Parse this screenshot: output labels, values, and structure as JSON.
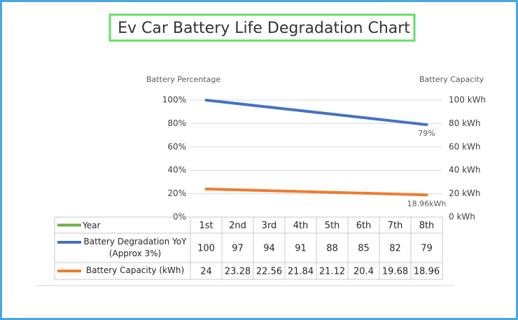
{
  "chart_data": {
    "type": "line",
    "title": "Ev Car Battery Life Degradation Chart",
    "y_label": "Battery Percentage",
    "y2_label": "Battery Capacity",
    "category_label": "Year",
    "category_color": "#70ad47",
    "categories": [
      "1st",
      "2nd",
      "3rd",
      "4th",
      "5th",
      "6th",
      "7th",
      "8th"
    ],
    "series": [
      {
        "name": "Battery Degradation YoY (Approx 3%)",
        "color": "#4472c4",
        "axis": "y",
        "values": [
          100,
          97,
          94,
          91,
          88,
          85,
          82,
          79
        ],
        "value_labels": [
          null,
          null,
          null,
          null,
          null,
          null,
          null,
          "79%"
        ]
      },
      {
        "name": "Battery Capacity (kWh)",
        "color": "#ed7d31",
        "axis": "y2",
        "values": [
          24,
          23.28,
          22.56,
          21.84,
          21.12,
          20.4,
          19.68,
          18.96
        ],
        "value_labels": [
          null,
          null,
          null,
          null,
          null,
          null,
          null,
          "18.96kWh"
        ]
      }
    ],
    "ylim": [
      0,
      100
    ],
    "yticks": [
      {
        "value": 0,
        "label": "0%"
      },
      {
        "value": 20,
        "label": "20%"
      },
      {
        "value": 40,
        "label": "40%"
      },
      {
        "value": 60,
        "label": "60%"
      },
      {
        "value": 80,
        "label": "80%"
      },
      {
        "value": 100,
        "label": "100%"
      }
    ],
    "y2lim": [
      0,
      100
    ],
    "y2ticks": [
      {
        "value": 0,
        "label": "0 kWh"
      },
      {
        "value": 20,
        "label": "20 kWh"
      },
      {
        "value": 40,
        "label": "40 kWh"
      },
      {
        "value": 60,
        "label": "60 kWh"
      },
      {
        "value": 80,
        "label": "80 kWh"
      },
      {
        "value": 100,
        "label": "100 kWh"
      }
    ],
    "grid": true
  }
}
